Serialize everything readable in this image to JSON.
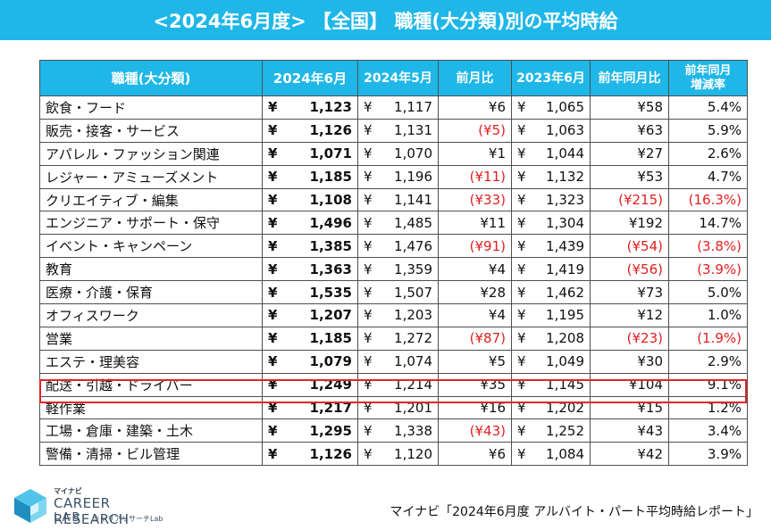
{
  "title": "<2024年6月度> 【全国】 職種(大分類)別の平均時給",
  "table": {
    "headers": [
      "職種(大分類)",
      "2024年6月",
      "2024年5月",
      "前月比",
      "2023年6月",
      "前年同月比",
      "前年同月\n増減率"
    ],
    "currency": "¥",
    "rows": [
      {
        "label": "飲食・フード",
        "jun2024": "1,123",
        "may2024": "1,117",
        "mom": "¥6",
        "jun2023": "1,065",
        "yoy": "¥58",
        "rate": "5.4%"
      },
      {
        "label": "販売・接客・サービス",
        "jun2024": "1,126",
        "may2024": "1,131",
        "mom": "(¥5)",
        "jun2023": "1,063",
        "yoy": "¥63",
        "rate": "5.9%"
      },
      {
        "label": "アパレル・ファッション関連",
        "jun2024": "1,071",
        "may2024": "1,070",
        "mom": "¥1",
        "jun2023": "1,044",
        "yoy": "¥27",
        "rate": "2.6%"
      },
      {
        "label": "レジャー・アミューズメント",
        "jun2024": "1,185",
        "may2024": "1,196",
        "mom": "(¥11)",
        "jun2023": "1,132",
        "yoy": "¥53",
        "rate": "4.7%"
      },
      {
        "label": "クリエイティブ・編集",
        "jun2024": "1,108",
        "may2024": "1,141",
        "mom": "(¥33)",
        "jun2023": "1,323",
        "yoy": "(¥215)",
        "rate": "(16.3%)"
      },
      {
        "label": "エンジニア・サポート・保守",
        "jun2024": "1,496",
        "may2024": "1,485",
        "mom": "¥11",
        "jun2023": "1,304",
        "yoy": "¥192",
        "rate": "14.7%"
      },
      {
        "label": "イベント・キャンペーン",
        "jun2024": "1,385",
        "may2024": "1,476",
        "mom": "(¥91)",
        "jun2023": "1,439",
        "yoy": "(¥54)",
        "rate": "(3.8%)"
      },
      {
        "label": "教育",
        "jun2024": "1,363",
        "may2024": "1,359",
        "mom": "¥4",
        "jun2023": "1,419",
        "yoy": "(¥56)",
        "rate": "(3.9%)"
      },
      {
        "label": "医療・介護・保育",
        "jun2024": "1,535",
        "may2024": "1,507",
        "mom": "¥28",
        "jun2023": "1,462",
        "yoy": "¥73",
        "rate": "5.0%"
      },
      {
        "label": "オフィスワーク",
        "jun2024": "1,207",
        "may2024": "1,203",
        "mom": "¥4",
        "jun2023": "1,195",
        "yoy": "¥12",
        "rate": "1.0%"
      },
      {
        "label": "営業",
        "jun2024": "1,185",
        "may2024": "1,272",
        "mom": "(¥87)",
        "jun2023": "1,208",
        "yoy": "(¥23)",
        "rate": "(1.9%)"
      },
      {
        "label": "エステ・理美容",
        "jun2024": "1,079",
        "may2024": "1,074",
        "mom": "¥5",
        "jun2023": "1,049",
        "yoy": "¥30",
        "rate": "2.9%"
      },
      {
        "label": "配送・引越・ドライバー",
        "jun2024": "1,249",
        "may2024": "1,214",
        "mom": "¥35",
        "jun2023": "1,145",
        "yoy": "¥104",
        "rate": "9.1%"
      },
      {
        "label": "軽作業",
        "jun2024": "1,217",
        "may2024": "1,201",
        "mom": "¥16",
        "jun2023": "1,202",
        "yoy": "¥15",
        "rate": "1.2%"
      },
      {
        "label": "工場・倉庫・建築・土木",
        "jun2024": "1,295",
        "may2024": "1,338",
        "mom": "(¥43)",
        "jun2023": "1,252",
        "yoy": "¥43",
        "rate": "3.4%"
      },
      {
        "label": "警備・清掃・ビル管理",
        "jun2024": "1,126",
        "may2024": "1,120",
        "mom": "¥6",
        "jun2023": "1,084",
        "yoy": "¥42",
        "rate": "3.9%"
      }
    ]
  },
  "logo": {
    "top": "マイナビ",
    "main": "CAREER RESEARCH",
    "lab": "LAB",
    "sub": "キャリアリサーチLab"
  },
  "source": "マイナビ「2024年6月度 アルバイト・パート平均時給レポート」",
  "colors": {
    "accent": "#1fb7e8",
    "negative": "#e02020",
    "highlight_border": "#e0252a"
  }
}
